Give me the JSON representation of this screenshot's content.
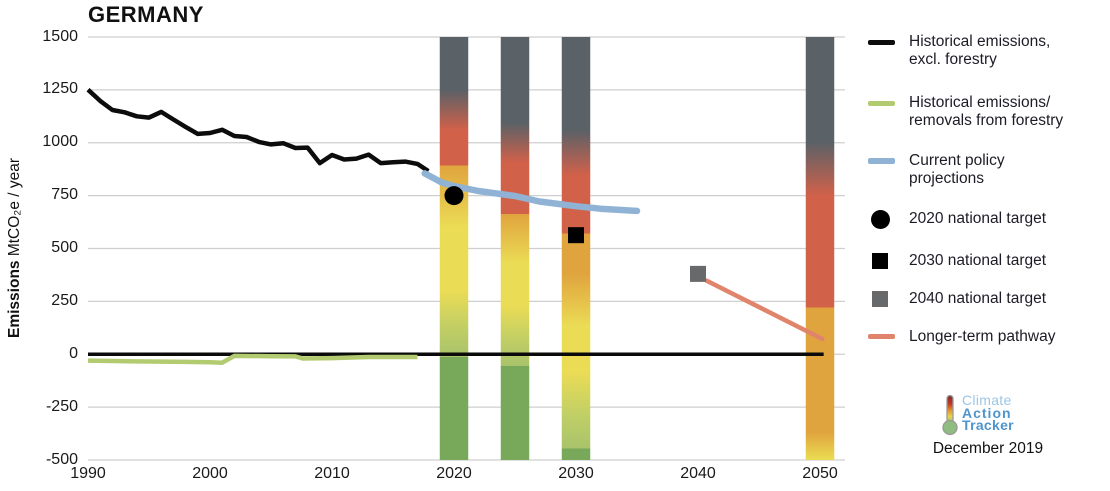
{
  "title": "GERMANY",
  "y_axis_title": {
    "bold": "Emissions",
    "rest": " MtCO₂e / year"
  },
  "branding": {
    "climate": "Climate",
    "action": "Action",
    "tracker": "Tracker",
    "date": "December 2019"
  },
  "legend": {
    "items": [
      {
        "id": "historical-excl-forestry",
        "label": "Historical emissions,\nexcl. forestry",
        "shape": "line",
        "color": "#0c0c0c"
      },
      {
        "id": "historical-forestry",
        "label": "Historical emissions/\nremovals from forestry",
        "shape": "line",
        "color": "#b3cb70"
      },
      {
        "id": "current-policy-projections",
        "label": "Current policy\nprojections",
        "shape": "line",
        "color": "#90b3d5"
      },
      {
        "id": "target-2020",
        "label": "2020 national target",
        "shape": "circle",
        "color": "#000000"
      },
      {
        "id": "target-2030",
        "label": "2030 national target",
        "shape": "square",
        "color": "#000000"
      },
      {
        "id": "target-2040",
        "label": "2040 national target",
        "shape": "square",
        "color": "#67696b"
      },
      {
        "id": "longer-term-pathway",
        "label": "Longer-term pathway",
        "shape": "line",
        "color": "#e0846b"
      }
    ]
  },
  "chart_data": {
    "type": "line",
    "title": "GERMANY",
    "ylabel": "Emissions MtCO₂e / year",
    "xlabel": "",
    "ylim": [
      -500,
      1500
    ],
    "xlim": [
      1990,
      2052
    ],
    "grid": "horizontal",
    "legend_position": "right",
    "y_axis": {
      "ticks": [
        1500,
        1250,
        1000,
        750,
        500,
        250,
        0,
        -250,
        -500
      ]
    },
    "x_axis": {
      "ticks": [
        1990,
        2000,
        2010,
        2020,
        2030,
        2040,
        2050
      ]
    },
    "baseline": {
      "value": 0,
      "x_start": 1990,
      "x_end": 2050.3,
      "color": "#0a0a0a"
    },
    "series": [
      {
        "id": "historical-forestry",
        "name": "Historical emissions/removals from forestry",
        "color": "#b3cb70",
        "width": 4.5,
        "x": [
          1990,
          1994,
          1998,
          2000,
          2001,
          2002,
          2005,
          2007,
          2007.6,
          2010,
          2013,
          2017
        ],
        "y": [
          -30,
          -34,
          -36,
          -38,
          -40,
          -8,
          -9,
          -10,
          -20,
          -18,
          -13,
          -13
        ]
      },
      {
        "id": "historical-excl-forestry",
        "name": "Historical emissions, excl. forestry",
        "color": "#0c0c0c",
        "width": 4.5,
        "x": [
          1990,
          1991,
          1992,
          1993,
          1994,
          1995,
          1996,
          1997,
          1998,
          1999,
          2000,
          2001,
          2002,
          2003,
          2004,
          2005,
          2006,
          2007,
          2008,
          2009,
          2010,
          2011,
          2012,
          2013,
          2014,
          2015,
          2016,
          2017,
          2017.9
        ],
        "y": [
          1251,
          1198,
          1155,
          1144,
          1125,
          1119,
          1146,
          1110,
          1075,
          1042,
          1046,
          1061,
          1032,
          1027,
          1004,
          992,
          998,
          975,
          977,
          904,
          942,
          921,
          925,
          944,
          904,
          908,
          911,
          900,
          866
        ]
      },
      {
        "id": "current-policy-projections",
        "name": "Current policy projections",
        "color": "#90b3d5",
        "width": 6.5,
        "linecap": "round",
        "x": [
          2017.6,
          2019,
          2020,
          2022,
          2025,
          2027,
          2030,
          2032,
          2035
        ],
        "y": [
          855,
          812,
          795,
          772,
          748,
          722,
          700,
          688,
          678
        ]
      },
      {
        "id": "longer-term-pathway",
        "name": "Longer-term pathway",
        "color": "#e0846b",
        "width": 4.5,
        "linecap": "round",
        "x": [
          2040.7,
          2050.2
        ],
        "y": [
          348,
          72
        ]
      }
    ],
    "targets": [
      {
        "id": "target-2020",
        "name": "2020 national target",
        "marker": "circle",
        "color": "#000000",
        "x": 2020,
        "y": 750
      },
      {
        "id": "target-2030",
        "name": "2030 national target",
        "marker": "square",
        "color": "#000000",
        "x": 2030,
        "y": 563
      },
      {
        "id": "target-2040",
        "name": "2040 national target",
        "marker": "square",
        "color": "#67696b",
        "x": 2040,
        "y": 380
      }
    ],
    "rating_bars": [
      {
        "center_year": 2020,
        "stops": [
          {
            "v": 1500,
            "c": "#5a6167"
          },
          {
            "v": 1250,
            "c": "#5a6167"
          },
          {
            "v": 1060,
            "c": "#d2614a"
          },
          {
            "v": 892,
            "c": "#d2614a"
          },
          {
            "v": 892,
            "c": "#e0a43e"
          },
          {
            "v": 600,
            "c": "#ebdc55"
          },
          {
            "v": 300,
            "c": "#ebdc55"
          },
          {
            "v": 150,
            "c": "#c6d063"
          },
          {
            "v": -12,
            "c": "#a9c36b"
          },
          {
            "v": -12,
            "c": "#78a95a"
          },
          {
            "v": -500,
            "c": "#78a95a"
          }
        ]
      },
      {
        "center_year": 2025,
        "stops": [
          {
            "v": 1500,
            "c": "#5a6167"
          },
          {
            "v": 1095,
            "c": "#5a6167"
          },
          {
            "v": 905,
            "c": "#d2614a"
          },
          {
            "v": 662,
            "c": "#d2614a"
          },
          {
            "v": 662,
            "c": "#e0a43e"
          },
          {
            "v": 430,
            "c": "#ebdc55"
          },
          {
            "v": 230,
            "c": "#ebdc55"
          },
          {
            "v": 90,
            "c": "#c6d063"
          },
          {
            "v": -55,
            "c": "#a9c36b"
          },
          {
            "v": -55,
            "c": "#78a95a"
          },
          {
            "v": -500,
            "c": "#78a95a"
          }
        ]
      },
      {
        "center_year": 2030,
        "stops": [
          {
            "v": 1500,
            "c": "#5a6167"
          },
          {
            "v": 1060,
            "c": "#5a6167"
          },
          {
            "v": 845,
            "c": "#d2614a"
          },
          {
            "v": 572,
            "c": "#d2614a"
          },
          {
            "v": 572,
            "c": "#e0a43e"
          },
          {
            "v": 380,
            "c": "#e0a43e"
          },
          {
            "v": 130,
            "c": "#ebdc55"
          },
          {
            "v": -80,
            "c": "#ebdc55"
          },
          {
            "v": -290,
            "c": "#c0cf66"
          },
          {
            "v": -445,
            "c": "#a9c36b"
          },
          {
            "v": -445,
            "c": "#78a95a"
          },
          {
            "v": -500,
            "c": "#78a95a"
          }
        ]
      },
      {
        "center_year": 2050,
        "stops": [
          {
            "v": 1500,
            "c": "#5a6167"
          },
          {
            "v": 1005,
            "c": "#5a6167"
          },
          {
            "v": 748,
            "c": "#d2614a"
          },
          {
            "v": 222,
            "c": "#d2614a"
          },
          {
            "v": 222,
            "c": "#e0a43e"
          },
          {
            "v": -370,
            "c": "#e0a43e"
          },
          {
            "v": -500,
            "c": "#eadd52"
          }
        ]
      }
    ]
  }
}
